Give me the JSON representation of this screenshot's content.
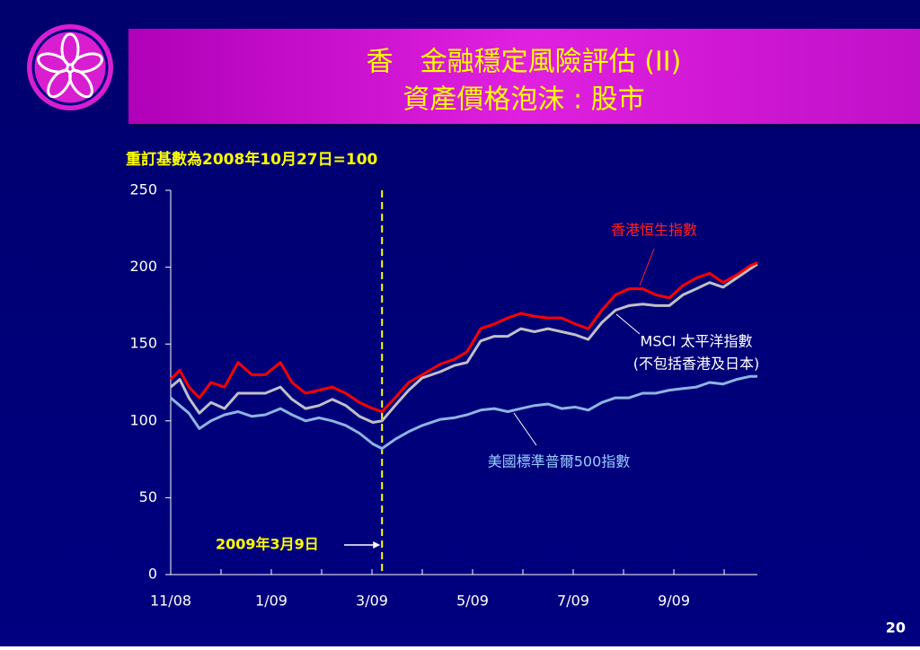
{
  "chart_data": {
    "type": "line",
    "title": "香　金融穩定風險評估 (II)",
    "subtitle": "資產價格泡沫 : 股市",
    "note": "重訂基數為2008年10月27日=100",
    "annotation": "2009年3月9日",
    "annotation_x": 4.2,
    "page_number": "20",
    "x": [
      0,
      0.18,
      0.36,
      0.57,
      0.8,
      1.07,
      1.34,
      1.61,
      1.88,
      2.18,
      2.41,
      2.68,
      2.95,
      3.21,
      3.48,
      3.75,
      4.02,
      4.2,
      4.46,
      4.73,
      5.0,
      5.36,
      5.63,
      5.89,
      6.16,
      6.43,
      6.7,
      6.96,
      7.23,
      7.5,
      7.77,
      8.04,
      8.3,
      8.57,
      8.84,
      9.11,
      9.38,
      9.64,
      9.91,
      10.18,
      10.45,
      10.71,
      10.98,
      11.25,
      11.52,
      11.66
    ],
    "xlim": [
      0,
      11.66
    ],
    "xticks": [
      {
        "value": 0,
        "label": "11/08"
      },
      {
        "value": 2,
        "label": "1/09"
      },
      {
        "value": 4,
        "label": "3/09"
      },
      {
        "value": 6,
        "label": "5/09"
      },
      {
        "value": 8,
        "label": "7/09"
      },
      {
        "value": 10,
        "label": "9/09"
      }
    ],
    "xminor": [
      1,
      3,
      5,
      7,
      9,
      11
    ],
    "ylim": [
      0,
      250
    ],
    "yticks": [
      0,
      50,
      100,
      150,
      200,
      250
    ],
    "series": [
      {
        "name": "美國標準普爾500指數",
        "color": "#8db4e2",
        "label_color": "#99ccff",
        "values": [
          115,
          110,
          105,
          95,
          100,
          104,
          106,
          103,
          104,
          108,
          104,
          100,
          102,
          100,
          97,
          92,
          85,
          82,
          88,
          93,
          97,
          101,
          102,
          104,
          107,
          108,
          106,
          108,
          110,
          111,
          108,
          109,
          107,
          112,
          115,
          115,
          118,
          118,
          120,
          121,
          122,
          125,
          124,
          127,
          129,
          129
        ]
      },
      {
        "name": "MSCI 太平洋指數",
        "subname": "(不包括香港及日本)",
        "color": "#c0c0c8",
        "label_color": "#ffffff",
        "values": [
          122,
          127,
          115,
          105,
          112,
          108,
          118,
          118,
          118,
          122,
          114,
          108,
          110,
          114,
          110,
          103,
          99,
          100,
          110,
          120,
          128,
          132,
          136,
          138,
          152,
          155,
          155,
          160,
          158,
          160,
          158,
          156,
          153,
          164,
          172,
          175,
          176,
          175,
          175,
          182,
          186,
          190,
          187,
          193,
          199,
          202
        ]
      },
      {
        "name": "香港恒生指數",
        "color": "#ff0000",
        "label_color": "#ff2020",
        "values": [
          127,
          133,
          122,
          115,
          125,
          122,
          138,
          130,
          130,
          138,
          125,
          118,
          120,
          122,
          118,
          112,
          108,
          106,
          115,
          125,
          130,
          137,
          140,
          145,
          160,
          163,
          167,
          170,
          168,
          167,
          167,
          163,
          160,
          172,
          182,
          186,
          186,
          182,
          180,
          188,
          193,
          196,
          190,
          195,
          201,
          203
        ]
      }
    ]
  }
}
